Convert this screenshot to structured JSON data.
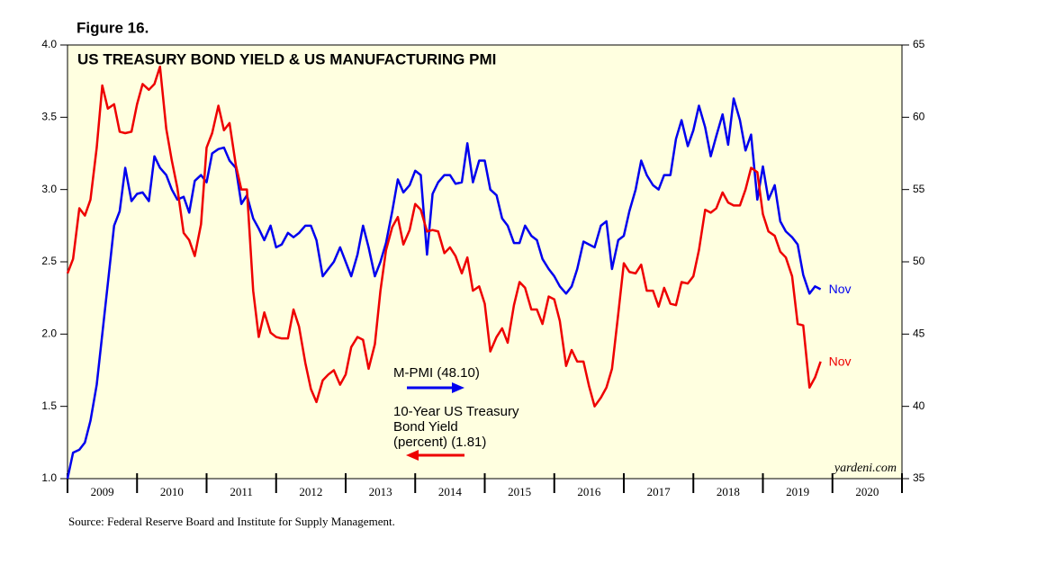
{
  "chart_data": {
    "type": "line",
    "figure_label": "Figure 16.",
    "title": "US TREASURY BOND YIELD & US MANUFACTURING PMI",
    "source": "Source: Federal Reserve Board and Institute for Supply Management.",
    "watermark": "yardeni.com",
    "xlim": [
      2009,
      2021
    ],
    "xticks": [
      2009,
      2010,
      2011,
      2012,
      2013,
      2014,
      2015,
      2016,
      2017,
      2018,
      2019,
      2020
    ],
    "ylim": [
      1,
      4
    ],
    "yticks": [
      {
        "value": 1,
        "label": "1.0"
      },
      {
        "value": 1.5,
        "label": "1.5"
      },
      {
        "value": 2,
        "label": "2.0"
      },
      {
        "value": 2.5,
        "label": "2.5"
      },
      {
        "value": 3,
        "label": "3.0"
      },
      {
        "value": 3.5,
        "label": "3.5"
      },
      {
        "value": 4,
        "label": "4.0"
      }
    ],
    "y2lim": [
      35,
      65
    ],
    "y2ticks": [
      35,
      40,
      45,
      50,
      55,
      60,
      65
    ],
    "background": "#ffffe0",
    "x": [
      2009.0,
      2009.08,
      2009.17,
      2009.25,
      2009.33,
      2009.42,
      2009.5,
      2009.58,
      2009.67,
      2009.75,
      2009.83,
      2009.92,
      2010.0,
      2010.08,
      2010.17,
      2010.25,
      2010.33,
      2010.42,
      2010.5,
      2010.58,
      2010.67,
      2010.75,
      2010.83,
      2010.92,
      2011.0,
      2011.08,
      2011.17,
      2011.25,
      2011.33,
      2011.42,
      2011.5,
      2011.58,
      2011.67,
      2011.75,
      2011.83,
      2011.92,
      2012.0,
      2012.08,
      2012.17,
      2012.25,
      2012.33,
      2012.42,
      2012.5,
      2012.58,
      2012.67,
      2012.75,
      2012.83,
      2012.92,
      2013.0,
      2013.08,
      2013.17,
      2013.25,
      2013.33,
      2013.42,
      2013.5,
      2013.58,
      2013.67,
      2013.75,
      2013.83,
      2013.92,
      2014.0,
      2014.08,
      2014.17,
      2014.25,
      2014.33,
      2014.42,
      2014.5,
      2014.58,
      2014.67,
      2014.75,
      2014.83,
      2014.92,
      2015.0,
      2015.08,
      2015.17,
      2015.25,
      2015.33,
      2015.42,
      2015.5,
      2015.58,
      2015.67,
      2015.75,
      2015.83,
      2015.92,
      2016.0,
      2016.08,
      2016.17,
      2016.25,
      2016.33,
      2016.42,
      2016.5,
      2016.58,
      2016.67,
      2016.75,
      2016.83,
      2016.92,
      2017.0,
      2017.08,
      2017.17,
      2017.25,
      2017.33,
      2017.42,
      2017.5,
      2017.58,
      2017.67,
      2017.75,
      2017.83,
      2017.92,
      2018.0,
      2018.08,
      2018.17,
      2018.25,
      2018.33,
      2018.42,
      2018.5,
      2018.58,
      2018.67,
      2018.75,
      2018.83,
      2018.92,
      2019.0,
      2019.08,
      2019.17,
      2019.25,
      2019.33,
      2019.42,
      2019.5,
      2019.58,
      2019.67,
      2019.75,
      2019.83
    ],
    "series": [
      {
        "name": "M-PMI (48.10)",
        "label_lines": [
          "M-PMI (48.10)"
        ],
        "end_label": "Nov",
        "color": "#0000ee",
        "axis": "y2",
        "values": [
          35.0,
          36.8,
          37.0,
          37.5,
          39.0,
          41.5,
          45.0,
          48.5,
          52.5,
          53.5,
          56.5,
          54.2,
          54.7,
          54.8,
          54.2,
          57.3,
          56.5,
          56.0,
          55.0,
          54.3,
          54.5,
          53.4,
          55.6,
          56.0,
          55.5,
          57.5,
          57.8,
          57.9,
          57.0,
          56.5,
          54.0,
          54.6,
          53.0,
          52.3,
          51.5,
          52.5,
          51.0,
          51.2,
          52.0,
          51.7,
          52.0,
          52.5,
          52.5,
          51.5,
          49.0,
          49.5,
          50.0,
          51.0,
          50.0,
          49.0,
          50.5,
          52.5,
          51.0,
          49.0,
          50.0,
          51.3,
          53.5,
          55.7,
          54.8,
          55.3,
          56.3,
          56.0,
          50.5,
          54.7,
          55.5,
          56.0,
          56.0,
          55.4,
          55.5,
          58.2,
          55.5,
          57.0,
          57.0,
          55.0,
          54.6,
          53.0,
          52.5,
          51.3,
          51.3,
          52.5,
          51.8,
          51.5,
          50.2,
          49.5,
          49.0,
          48.3,
          47.8,
          48.3,
          49.5,
          51.4,
          51.2,
          51.0,
          52.5,
          52.8,
          49.5,
          51.5,
          51.8,
          53.5,
          55.0,
          57.0,
          56.0,
          55.3,
          55.0,
          56.0,
          56.0,
          58.5,
          59.8,
          58.0,
          59.1,
          60.8,
          59.3,
          57.3,
          58.7,
          60.2,
          58.1,
          61.3,
          59.8,
          57.7,
          58.8,
          54.3,
          56.6,
          54.3,
          55.3,
          52.8,
          52.1,
          51.7,
          51.2,
          49.1,
          47.8,
          48.3,
          48.1
        ]
      },
      {
        "name": "10-Year US Treasury Bond Yield (percent) (1.81)",
        "label_lines": [
          "10-Year US Treasury",
          "Bond Yield",
          "(percent) (1.81)"
        ],
        "end_label": "Nov",
        "color": "#ee0000",
        "axis": "y",
        "values": [
          2.42,
          2.52,
          2.87,
          2.82,
          2.93,
          3.29,
          3.72,
          3.56,
          3.59,
          3.4,
          3.39,
          3.4,
          3.59,
          3.73,
          3.69,
          3.73,
          3.85,
          3.42,
          3.2,
          3.01,
          2.7,
          2.65,
          2.54,
          2.76,
          3.29,
          3.39,
          3.58,
          3.41,
          3.46,
          3.17,
          3.0,
          3.0,
          2.3,
          1.98,
          2.15,
          2.01,
          1.98,
          1.97,
          1.97,
          2.17,
          2.05,
          1.8,
          1.62,
          1.53,
          1.68,
          1.72,
          1.75,
          1.65,
          1.72,
          1.91,
          1.98,
          1.96,
          1.76,
          1.93,
          2.3,
          2.58,
          2.74,
          2.81,
          2.62,
          2.72,
          2.9,
          2.86,
          2.71,
          2.72,
          2.71,
          2.56,
          2.6,
          2.54,
          2.42,
          2.53,
          2.3,
          2.33,
          2.21,
          1.88,
          1.98,
          2.04,
          1.94,
          2.2,
          2.36,
          2.32,
          2.17,
          2.17,
          2.07,
          2.26,
          2.24,
          2.09,
          1.78,
          1.89,
          1.81,
          1.81,
          1.64,
          1.5,
          1.56,
          1.63,
          1.76,
          2.14,
          2.49,
          2.43,
          2.42,
          2.48,
          2.3,
          2.3,
          2.19,
          2.32,
          2.21,
          2.2,
          2.36,
          2.35,
          2.4,
          2.58,
          2.86,
          2.84,
          2.87,
          2.98,
          2.91,
          2.89,
          2.89,
          3.0,
          3.15,
          3.12,
          2.83,
          2.71,
          2.68,
          2.57,
          2.53,
          2.4,
          2.07,
          2.06,
          1.63,
          1.7,
          1.81
        ]
      }
    ]
  }
}
